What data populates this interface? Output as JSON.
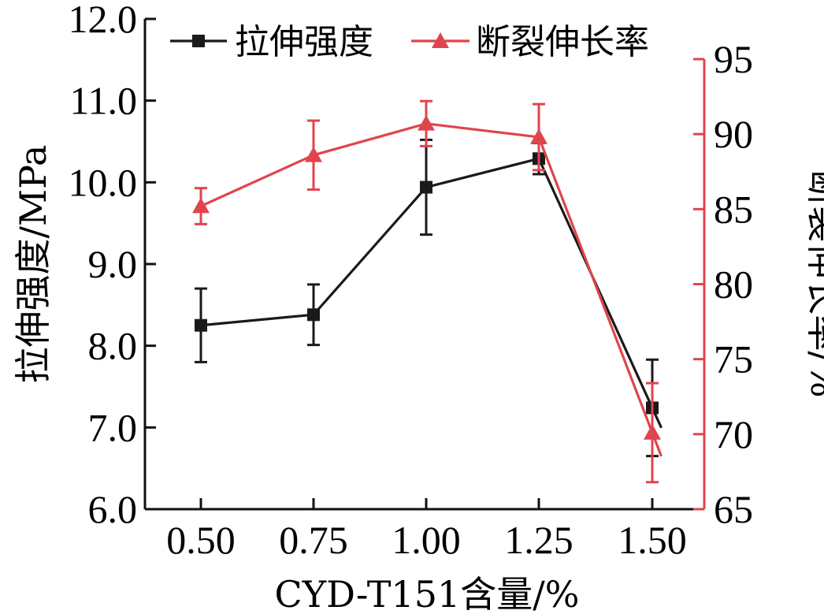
{
  "chart_data": {
    "type": "line",
    "x": [
      "0.50",
      "0.75",
      "1.00",
      "1.25",
      "1.50"
    ],
    "x_values": [
      0.5,
      0.75,
      1.0,
      1.25,
      1.5
    ],
    "xlabel": "CYD-T151含量/%",
    "y_left": {
      "label": "拉伸强度/MPa",
      "range": [
        6.0,
        12.0
      ],
      "ticks": [
        "6.0",
        "7.0",
        "8.0",
        "9.0",
        "10.0",
        "11.0",
        "12.0"
      ],
      "color": "#000000"
    },
    "y_right": {
      "label": "断裂伸长率/%",
      "range": [
        65,
        95
      ],
      "ticks": [
        "65",
        "70",
        "75",
        "80",
        "85",
        "90",
        "95"
      ],
      "color": "#e0454d"
    },
    "series": [
      {
        "name": "拉伸强度",
        "axis": "left",
        "color": "#1a1a1a",
        "marker": "square",
        "values": [
          8.25,
          8.38,
          9.94,
          10.29,
          7.24
        ],
        "errors": [
          0.45,
          0.37,
          0.58,
          0.19,
          0.59
        ]
      },
      {
        "name": "断裂伸长率",
        "axis": "right",
        "color": "#e0454d",
        "marker": "triangle",
        "values": [
          85.2,
          88.6,
          90.7,
          89.8,
          70.1
        ],
        "errors": [
          1.2,
          2.3,
          1.5,
          2.2,
          3.3
        ]
      }
    ],
    "legend": {
      "placement": "top",
      "entries": [
        "拉伸强度",
        "断裂伸长率"
      ]
    },
    "grid": false
  }
}
